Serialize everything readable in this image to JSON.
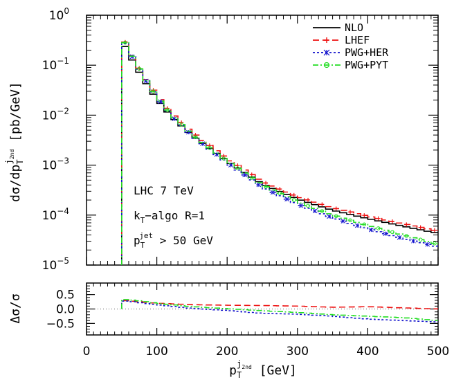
{
  "chart_data": [
    {
      "panel": "main",
      "type": "line",
      "ylabel": "dσ/dp_T^{j_2nd} [pb/GeV]",
      "yscale": "log",
      "xlim": [
        0,
        500
      ],
      "ylim": [
        1e-05,
        1
      ],
      "x_ticks": [
        0,
        100,
        200,
        300,
        400,
        500
      ],
      "y_ticks": [
        {
          "value": 1,
          "base": "10",
          "exp": "0"
        },
        {
          "value": 0.1,
          "base": "10",
          "exp": "−1"
        },
        {
          "value": 0.01,
          "base": "10",
          "exp": "−2"
        },
        {
          "value": 0.001,
          "base": "10",
          "exp": "−3"
        },
        {
          "value": 0.0001,
          "base": "10",
          "exp": "−4"
        },
        {
          "value": 1e-05,
          "base": "10",
          "exp": "−5"
        }
      ],
      "annotations": [
        "LHC 7 TeV",
        "k",
        "T",
        "−algo R=1",
        "p",
        "T",
        "jet",
        " > 50 GeV"
      ],
      "legend_position": "top-right",
      "series": [
        {
          "name": "NLO",
          "color": "#000000",
          "style": "solid",
          "marker": "none",
          "x": [
            50,
            60,
            70,
            80,
            90,
            100,
            120,
            150,
            200,
            250,
            300,
            350,
            400,
            450,
            500
          ],
          "y": [
            0.33,
            0.17,
            0.095,
            0.055,
            0.033,
            0.021,
            0.0095,
            0.0039,
            0.0012,
            0.00042,
            0.00021,
            0.000125,
            8.5e-05,
            6e-05,
            4.3e-05
          ]
        },
        {
          "name": "LHEF",
          "color": "#ee1111",
          "style": "dashed",
          "marker": "plus",
          "x": [
            50,
            60,
            70,
            80,
            90,
            100,
            120,
            150,
            200,
            250,
            300,
            350,
            400,
            450,
            500
          ],
          "y": [
            0.4,
            0.21,
            0.115,
            0.066,
            0.04,
            0.025,
            0.0112,
            0.0045,
            0.00135,
            0.00047,
            0.000235,
            0.00014,
            9.5e-05,
            6.7e-05,
            4.8e-05
          ]
        },
        {
          "name": "PWG+HER",
          "color": "#1111cc",
          "style": "dotted",
          "marker": "star",
          "x": [
            50,
            60,
            70,
            80,
            90,
            100,
            120,
            150,
            200,
            250,
            300,
            350,
            400,
            450,
            500
          ],
          "y": [
            0.38,
            0.2,
            0.11,
            0.063,
            0.037,
            0.023,
            0.0099,
            0.0039,
            0.00112,
            0.00036,
            0.000165,
            8.8e-05,
            5.3e-05,
            3.4e-05,
            2.3e-05
          ]
        },
        {
          "name": "PWG+PYT",
          "color": "#22dd22",
          "style": "dashdot",
          "marker": "circle",
          "x": [
            50,
            60,
            70,
            80,
            90,
            100,
            120,
            150,
            200,
            250,
            300,
            350,
            400,
            450,
            500
          ],
          "y": [
            0.39,
            0.205,
            0.112,
            0.064,
            0.038,
            0.0235,
            0.0103,
            0.0041,
            0.0012,
            0.0004,
            0.000185,
            0.0001,
            6.2e-05,
            4e-05,
            2.6e-05
          ]
        }
      ]
    },
    {
      "panel": "ratio",
      "type": "line",
      "ylabel": "Δσ/σ",
      "xlabel": "p_T^{j_2nd} [GeV]",
      "xlim": [
        0,
        500
      ],
      "ylim": [
        -0.9,
        0.9
      ],
      "y_ticks": [
        "0.5",
        "0.0",
        "−0.5"
      ],
      "x_ticks": [
        "0",
        "100",
        "200",
        "300",
        "400",
        "500"
      ],
      "series": [
        {
          "name": "LHEF",
          "color": "#ee1111",
          "style": "dashed",
          "x": [
            50,
            60,
            80,
            100,
            150,
            200,
            250,
            300,
            350,
            400,
            450,
            500
          ],
          "y": [
            0.3,
            0.28,
            0.24,
            0.2,
            0.15,
            0.13,
            0.12,
            0.1,
            0.06,
            0.08,
            0.04,
            0.0
          ]
        },
        {
          "name": "PWG+HER",
          "color": "#1111cc",
          "style": "dotted",
          "x": [
            50,
            60,
            80,
            100,
            150,
            200,
            250,
            300,
            350,
            400,
            450,
            500
          ],
          "y": [
            0.28,
            0.27,
            0.2,
            0.15,
            0.02,
            -0.05,
            -0.15,
            -0.18,
            -0.25,
            -0.35,
            -0.4,
            -0.45
          ]
        },
        {
          "name": "PWG+PYT",
          "color": "#22dd22",
          "style": "dashdot",
          "x": [
            50,
            60,
            80,
            100,
            150,
            200,
            250,
            300,
            350,
            400,
            450,
            500
          ],
          "y": [
            0.33,
            0.32,
            0.27,
            0.2,
            0.08,
            0.01,
            -0.06,
            -0.12,
            -0.2,
            -0.25,
            -0.3,
            -0.4
          ]
        }
      ]
    }
  ]
}
